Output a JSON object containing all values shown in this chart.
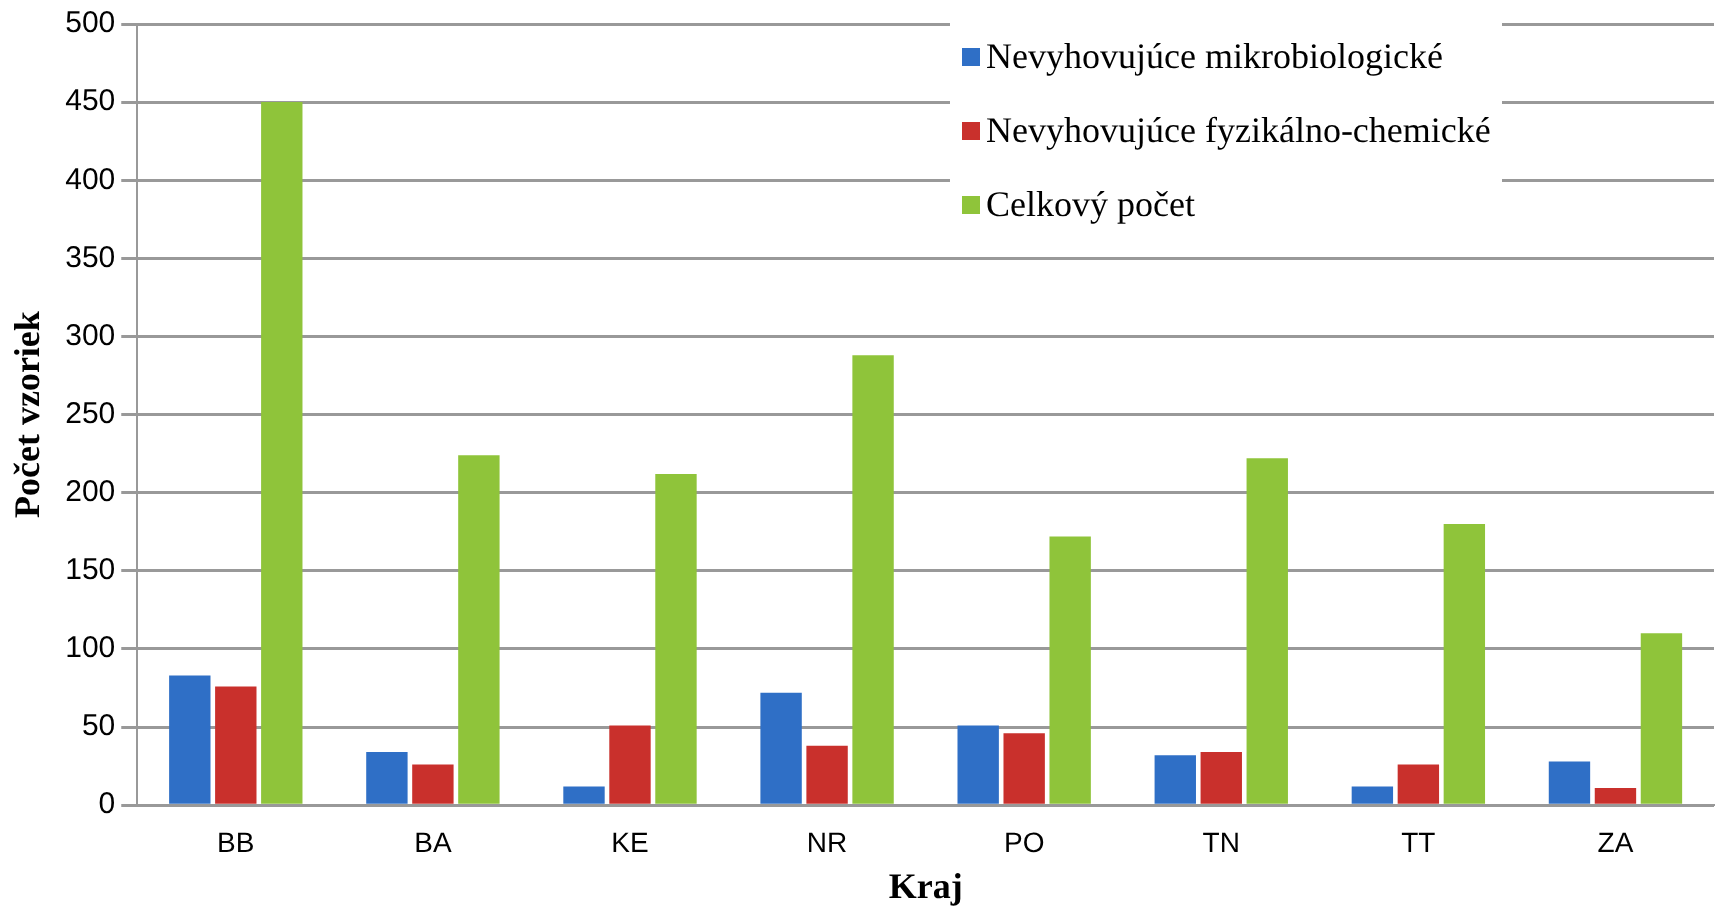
{
  "chart_data": {
    "type": "bar",
    "xlabel": "Kraj",
    "ylabel": "Počet vzoriek",
    "categories": [
      "BB",
      "BA",
      "KE",
      "NR",
      "PO",
      "TN",
      "TT",
      "ZA"
    ],
    "series": [
      {
        "name": "Nevyhovujúce mikrobiologické",
        "color": "#2f6fc6",
        "values": [
          83,
          34,
          12,
          72,
          51,
          32,
          12,
          28
        ]
      },
      {
        "name": "Nevyhovujúce fyzikálno-chemické",
        "color": "#c9302c",
        "values": [
          76,
          26,
          51,
          38,
          46,
          34,
          26,
          11
        ]
      },
      {
        "name": "Celkový počet",
        "color": "#8fc43a",
        "values": [
          450,
          224,
          212,
          288,
          172,
          222,
          180,
          110
        ]
      }
    ],
    "ylim": [
      0,
      500
    ],
    "yticks": [
      0,
      50,
      100,
      150,
      200,
      250,
      300,
      350,
      400,
      450,
      500
    ],
    "grid": "y",
    "legend": "top right"
  }
}
